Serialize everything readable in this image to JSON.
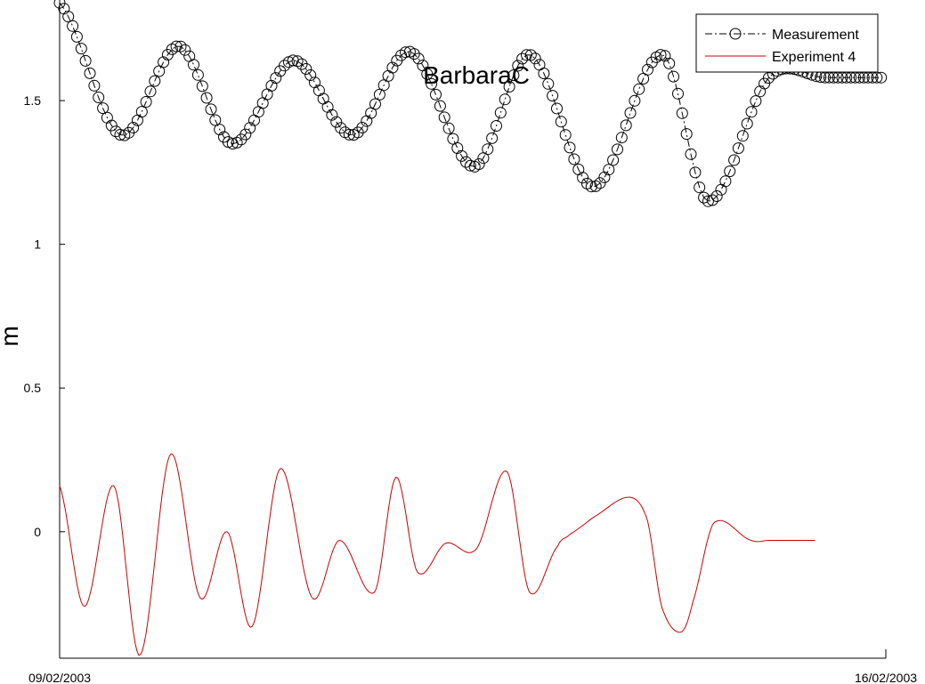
{
  "chart_data": {
    "type": "line",
    "title": "BarbaraC",
    "xlabel": "",
    "ylabel": "m",
    "xlim": [
      "09/02/2003",
      "16/02/2003"
    ],
    "ylim": [
      -0.44,
      1.85
    ],
    "x_ticks": [
      "09/02/2003",
      "16/02/2003"
    ],
    "y_ticks": [
      0,
      0.5,
      1,
      1.5
    ],
    "grid": false,
    "legend_placement": "top-right",
    "series_colors": {
      "measurement": "#000000",
      "experiment": "#cc0000"
    },
    "series": [
      {
        "name": "Measurement",
        "style": "dash-dot line with circle markers",
        "x_days_from_start": [
          0.0,
          0.52,
          1.01,
          1.46,
          1.98,
          2.48,
          2.97,
          3.51,
          3.98,
          4.52,
          5.11,
          5.49,
          6.01,
          6.49,
          6.96
        ],
        "values": [
          1.84,
          1.38,
          1.69,
          1.35,
          1.64,
          1.38,
          1.67,
          1.27,
          1.66,
          1.2,
          1.66,
          1.15,
          1.58,
          1.58,
          1.58
        ]
      },
      {
        "name": "Experiment 4",
        "style": "solid line",
        "x_days_from_start": [
          0.0,
          0.21,
          0.46,
          0.68,
          0.94,
          1.19,
          1.42,
          1.63,
          1.87,
          2.14,
          2.37,
          2.67,
          2.85,
          3.03,
          3.27,
          3.53,
          3.79,
          3.98,
          4.22,
          4.32,
          4.52,
          4.83,
          4.98,
          5.1,
          5.26,
          5.36,
          5.54,
          5.86,
          6.01,
          6.2,
          6.4
        ],
        "values": [
          0.16,
          -0.26,
          0.16,
          -0.43,
          0.27,
          -0.23,
          0.0,
          -0.33,
          0.22,
          -0.23,
          -0.03,
          -0.21,
          0.19,
          -0.14,
          -0.04,
          -0.06,
          0.21,
          -0.21,
          -0.05,
          -0.01,
          0.05,
          0.12,
          0.04,
          -0.26,
          -0.35,
          -0.25,
          0.03,
          -0.03,
          -0.03,
          -0.03,
          -0.03
        ]
      }
    ],
    "legend": {
      "measurement_label": "Measurement",
      "experiment_label": "Experiment 4"
    }
  }
}
